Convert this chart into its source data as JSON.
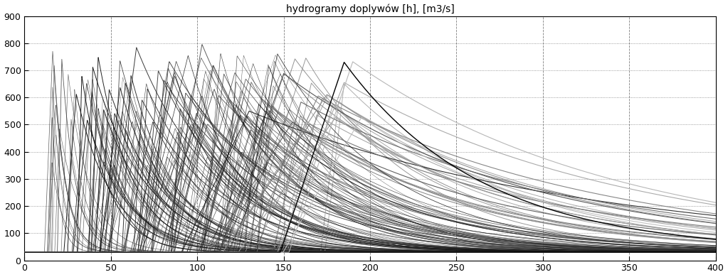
{
  "title": "hydrogramy doplywów [h], [m3/s]",
  "xlim": [
    0,
    400
  ],
  "ylim": [
    0,
    900
  ],
  "xticks": [
    0,
    50,
    100,
    150,
    200,
    250,
    300,
    350,
    400
  ],
  "yticks": [
    0,
    100,
    200,
    300,
    400,
    500,
    600,
    700,
    800,
    900
  ],
  "background_color": "#ffffff",
  "base_flow": 30,
  "grid_h_style": ":",
  "grid_v_style": "--",
  "grid_color": "#000000",
  "grid_alpha": 0.5,
  "grid_lw": 0.6
}
